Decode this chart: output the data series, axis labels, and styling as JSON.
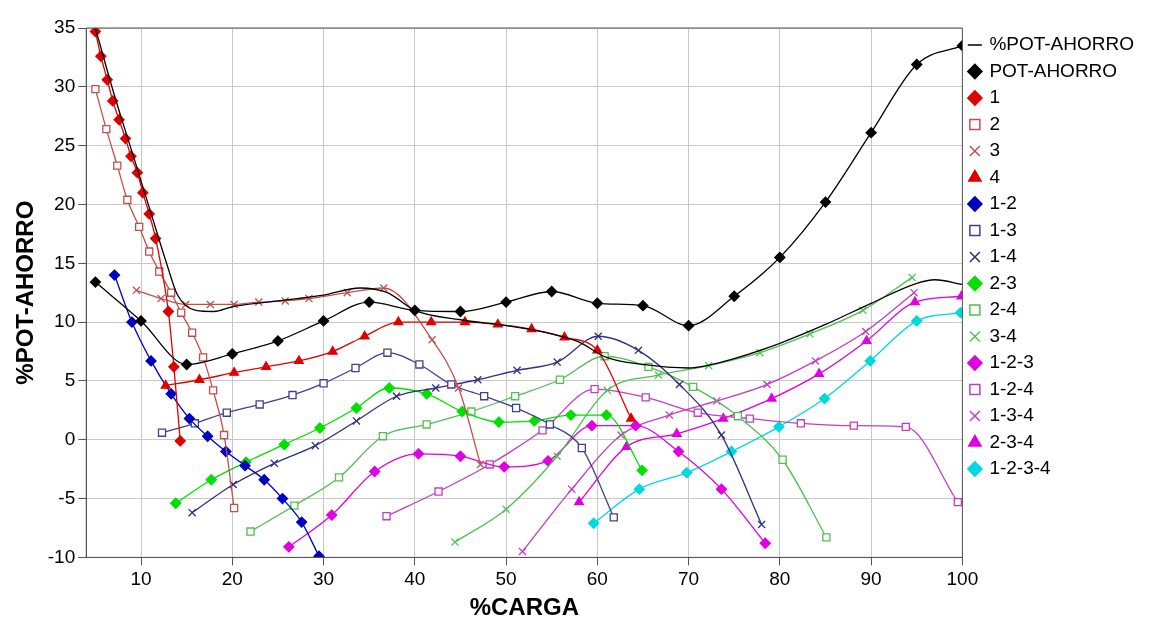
{
  "chart_data": {
    "type": "line",
    "xlabel": "%CARGA",
    "ylabel": "%POT-AHORRO",
    "xlim": [
      4,
      100
    ],
    "ylim": [
      -10,
      35
    ],
    "xticks": [
      10,
      20,
      30,
      40,
      50,
      60,
      70,
      80,
      90,
      100
    ],
    "yticks": [
      -10,
      -5,
      0,
      5,
      10,
      15,
      20,
      25,
      30,
      35
    ],
    "grid": true,
    "legend": "right",
    "series": [
      {
        "name": "%POT-AHORRO",
        "color": "#000000",
        "marker": "none",
        "x": [
          5,
          7,
          9,
          11,
          12.8,
          14,
          16,
          18,
          20,
          25,
          30,
          34,
          37,
          40,
          45,
          50,
          55,
          58,
          61,
          65,
          70,
          75,
          80,
          85,
          90,
          95,
          97,
          100
        ],
        "values": [
          35,
          29.5,
          24.5,
          19.5,
          15,
          12.3,
          11,
          10.9,
          11.3,
          11.8,
          12.3,
          12.9,
          12.5,
          11,
          10.2,
          9.7,
          9,
          8.3,
          7,
          6.4,
          6.1,
          6.9,
          8.2,
          9.8,
          11.6,
          13.3,
          13.6,
          13.2
        ]
      },
      {
        "name": "POT-AHORRO",
        "color": "#000000",
        "marker": "diamond",
        "x": [
          5,
          10,
          15,
          20,
          25,
          30,
          35,
          40,
          45,
          50,
          55,
          60,
          65,
          70,
          75,
          80,
          85,
          90,
          95,
          100
        ],
        "values": [
          13.4,
          10.1,
          6.4,
          7.3,
          8.4,
          10.1,
          11.7,
          11,
          10.9,
          11.7,
          12.6,
          11.6,
          11.4,
          9.7,
          12.2,
          15.5,
          20.2,
          26.1,
          31.9,
          33.5
        ]
      },
      {
        "name": "1",
        "color": "#e00000",
        "marker": "diamond",
        "x": [
          5,
          5.6,
          6.3,
          6.9,
          7.6,
          8.3,
          8.9,
          9.6,
          10.2,
          10.9,
          11.6,
          13,
          13.6,
          14.3
        ],
        "values": [
          34.7,
          32.6,
          30.6,
          28.8,
          27.2,
          25.6,
          24.1,
          22.7,
          21,
          19.2,
          17.1,
          10.9,
          6.2,
          -0.1
        ]
      },
      {
        "name": "2",
        "color": "#c0504d",
        "marker": "square",
        "x": [
          5,
          6.2,
          7.4,
          8.5,
          9.8,
          10.9,
          12,
          13.3,
          14.4,
          15.6,
          16.8,
          17.9,
          19.1,
          20.2
        ],
        "values": [
          29.8,
          26.4,
          23.3,
          20.4,
          18.1,
          16,
          14.3,
          12.5,
          10.8,
          9.1,
          7,
          4.2,
          0.4,
          -5.8
        ]
      },
      {
        "name": "3",
        "color": "#c0504d",
        "marker": "cross",
        "x": [
          9.5,
          12.2,
          14.9,
          17.6,
          20.2,
          22.9,
          25.8,
          28.4,
          32.6,
          36.6,
          41.9,
          44.8,
          47.2
        ],
        "values": [
          12.7,
          12,
          11.5,
          11.5,
          11.5,
          11.7,
          11.8,
          12,
          12.5,
          12.9,
          8.5,
          4.4,
          -2.1
        ]
      },
      {
        "name": "4",
        "color": "#e00000",
        "marker": "triangle",
        "x": [
          12.7,
          16.4,
          20.2,
          23.7,
          27.3,
          31,
          34.5,
          38.2,
          41.8,
          45.5,
          49.1,
          52.8,
          56.4,
          60,
          63.7
        ],
        "values": [
          4.6,
          5.1,
          5.7,
          6.2,
          6.7,
          7.5,
          8.8,
          10,
          10,
          10,
          9.8,
          9.4,
          8.7,
          7.6,
          1.8
        ]
      },
      {
        "name": "1-2",
        "color": "#0000c0",
        "marker": "diamond",
        "x": [
          7.1,
          9,
          11.1,
          13.3,
          15.3,
          17.3,
          19.3,
          21.4,
          23.5,
          25.5,
          27.6,
          29.5
        ],
        "values": [
          14,
          10,
          6.7,
          3.9,
          1.8,
          0.3,
          -1,
          -2.2,
          -3.4,
          -5,
          -7,
          -9.9
        ]
      },
      {
        "name": "1-3",
        "color": "#404090",
        "marker": "square",
        "x": [
          12.3,
          15.9,
          19.4,
          23,
          26.6,
          30,
          33.5,
          37,
          40.5,
          44,
          47.6,
          51.1,
          54.8,
          58.3,
          61.8
        ],
        "values": [
          0.6,
          1.4,
          2.3,
          3,
          3.8,
          4.8,
          6.1,
          7.4,
          6.4,
          4.7,
          3.7,
          2.7,
          1.3,
          -0.7,
          -6.6
        ]
      },
      {
        "name": "1-4",
        "color": "#303080",
        "marker": "cross",
        "x": [
          15.6,
          20.1,
          24.6,
          29.1,
          33.6,
          38,
          42.3,
          46.9,
          51.2,
          55.6,
          60.1,
          64.5,
          69,
          73.6,
          78
        ],
        "values": [
          -6.2,
          -3.8,
          -2,
          -0.5,
          1.6,
          3.7,
          4.4,
          5.1,
          5.9,
          6.6,
          8.8,
          7.6,
          4.7,
          0.4,
          -7.2
        ]
      },
      {
        "name": "2-3",
        "color": "#00e000",
        "marker": "diamond",
        "x": [
          13.8,
          17.7,
          21.5,
          25.7,
          29.6,
          33.6,
          37.2,
          41.3,
          45.2,
          49.2,
          53.1,
          57.1,
          61,
          64.9
        ],
        "values": [
          -5.4,
          -3.4,
          -1.9,
          -0.4,
          1,
          2.7,
          4.4,
          3.9,
          2.4,
          1.5,
          1.6,
          2.1,
          2.1,
          -2.6
        ]
      },
      {
        "name": "2-4",
        "color": "#50c050",
        "marker": "square",
        "x": [
          22,
          26.8,
          31.7,
          36.5,
          41.3,
          46.2,
          51,
          55.9,
          60.8,
          65.6,
          70.5,
          75.4,
          80.3,
          85.1
        ],
        "values": [
          -7.8,
          -5.6,
          -3.2,
          0.3,
          1.3,
          2.4,
          3.7,
          5.1,
          7.1,
          6.2,
          4.5,
          2,
          -1.7,
          -8.3
        ]
      },
      {
        "name": "3-4",
        "color": "#50c050",
        "marker": "cross",
        "x": [
          44.4,
          50,
          55.6,
          61.1,
          66.7,
          72.2,
          77.8,
          83.3,
          89.1,
          94.5
        ],
        "values": [
          -8.7,
          -5.9,
          -1.4,
          4.2,
          5.5,
          6.3,
          7.4,
          9,
          11,
          13.8
        ]
      },
      {
        "name": "1-2-3",
        "color": "#e000e0",
        "marker": "diamond",
        "x": [
          26.2,
          30.9,
          35.6,
          40.4,
          45,
          49.8,
          54.6,
          59.4,
          64.2,
          68.9,
          73.6,
          78.4
        ],
        "values": [
          -9.1,
          -6.4,
          -2.7,
          -1.2,
          -1.4,
          -2.3,
          -1.8,
          1.2,
          1.2,
          -1,
          -4.2,
          -8.8
        ]
      },
      {
        "name": "1-2-4",
        "color": "#c040c0",
        "marker": "square",
        "x": [
          36.9,
          42.6,
          48.2,
          54,
          59.7,
          65.3,
          71,
          76.7,
          82.3,
          88.1,
          93.8,
          99.5
        ],
        "values": [
          -6.5,
          -4.4,
          -2.1,
          0.8,
          4.3,
          3.6,
          2.3,
          1.8,
          1.4,
          1.2,
          1.1,
          -5.3
        ]
      },
      {
        "name": "1-3-4",
        "color": "#c040c0",
        "marker": "cross",
        "x": [
          51.8,
          57.2,
          62.6,
          67.9,
          73.1,
          78.6,
          83.9,
          89.4,
          94.7
        ],
        "values": [
          -9.5,
          -4.2,
          0.4,
          2.1,
          3.3,
          4.7,
          6.7,
          9.2,
          12.5
        ]
      },
      {
        "name": "2-3-4",
        "color": "#e000e0",
        "marker": "triangle",
        "x": [
          58,
          63.2,
          68.7,
          73.8,
          79.1,
          84.3,
          89.5,
          94.8,
          99.9
        ],
        "values": [
          -5.3,
          -0.6,
          0.5,
          1.8,
          3.5,
          5.6,
          8.4,
          11.7,
          12.2
        ]
      },
      {
        "name": "1-2-3-4",
        "color": "#00d8e0",
        "marker": "diamond",
        "x": [
          59.6,
          64.6,
          69.8,
          74.7,
          79.9,
          84.9,
          89.9,
          95,
          99.8
        ],
        "values": [
          -7.1,
          -4.2,
          -2.8,
          -1,
          1.1,
          3.5,
          6.7,
          10.1,
          10.8
        ]
      }
    ]
  }
}
